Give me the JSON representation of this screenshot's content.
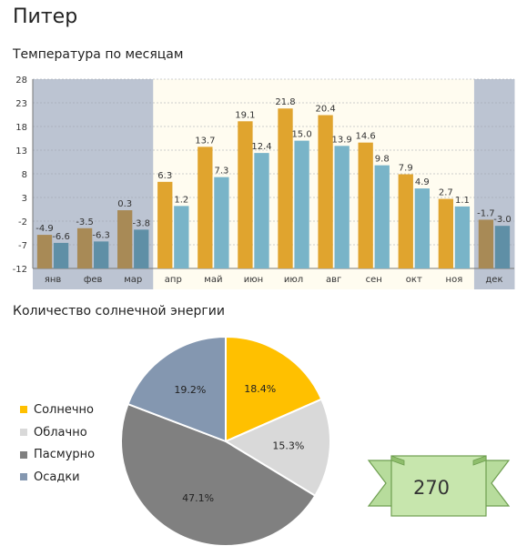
{
  "title": "Питер",
  "chart_temp": {
    "subtitle": "Температура по месяцам"
  },
  "chart_sun": {
    "subtitle": "Количество солнечной энергии"
  },
  "badge": {
    "value": "270"
  },
  "colors": {
    "max_bar": "#e0a42e",
    "min_bar": "#79b4c8",
    "max_bar_dim": "#a88a56",
    "min_bar_dim": "#5f8fa6",
    "winter_bg": "#bcc4d2",
    "summer_bg": "#fffcf0",
    "grid": "#9aa0a8",
    "ribbon_fill": "#b7dc9c",
    "ribbon_stroke": "#6e9e50"
  },
  "chart_data": [
    {
      "type": "bar",
      "title": "Температура по месяцам",
      "categories": [
        "янв",
        "фев",
        "мар",
        "апр",
        "май",
        "июн",
        "июл",
        "авг",
        "сен",
        "окт",
        "ноя",
        "дек"
      ],
      "series": [
        {
          "values": [
            -4.9,
            -3.5,
            0.3,
            6.3,
            13.7,
            19.1,
            21.8,
            20.4,
            14.6,
            7.9,
            2.7,
            -1.7
          ]
        },
        {
          "values": [
            -6.6,
            -6.3,
            -3.8,
            1.2,
            7.3,
            12.4,
            15.0,
            13.9,
            9.8,
            4.9,
            1.1,
            -3.0
          ]
        }
      ],
      "ylim": [
        -12,
        28
      ],
      "yticks": [
        "28",
        "23",
        "18",
        "13",
        "8",
        "3",
        "-2",
        "-7",
        "-12"
      ],
      "winter_categories": [
        "янв",
        "фев",
        "мар",
        "дек"
      ],
      "grid": true
    },
    {
      "type": "pie",
      "title": "Количество солнечной энергии",
      "labels": [
        "Солнечно",
        "Облачно",
        "Пасмурно",
        "Осадки"
      ],
      "values": [
        18.4,
        15.3,
        47.1,
        19.2
      ],
      "value_labels": [
        "18.4%",
        "15.3%",
        "47.1%",
        "19.2%"
      ],
      "colors": [
        "#ffc000",
        "#d9d9d9",
        "#808080",
        "#8497b0"
      ],
      "legend": "left"
    }
  ]
}
